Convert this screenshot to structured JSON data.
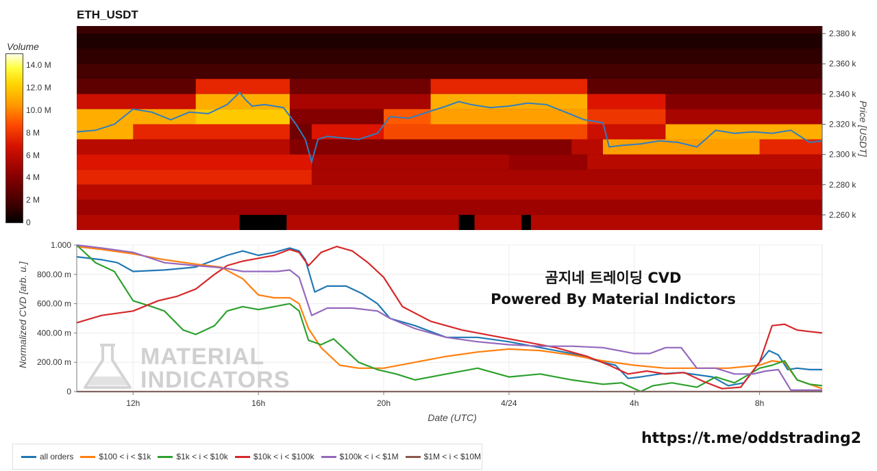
{
  "title": "ETH_USDT",
  "colorbar": {
    "title": "Volume",
    "ticks": [
      "0",
      "2 M",
      "4 M",
      "6 M",
      "8 M",
      "10.0 M",
      "12.0 M",
      "14.0 M"
    ],
    "tick_values": [
      0,
      2,
      4,
      6,
      8,
      10,
      12,
      14
    ]
  },
  "heatmap": {
    "price_ticks": [
      "2.260 k",
      "2.280 k",
      "2.300 k",
      "2.320 k",
      "2.340 k",
      "2.360 k",
      "2.380 k"
    ],
    "price_tick_values": [
      2260,
      2280,
      2300,
      2320,
      2340,
      2360,
      2380
    ],
    "ylim": [
      2250,
      2385
    ],
    "ylabel": "Price [USDT]"
  },
  "cvd": {
    "ylabel": "Normalized CVD [arb. u.]",
    "xlabel": "Date (UTC)",
    "y_ticks": [
      "0",
      "200.00 m",
      "400.00 m",
      "600.00 m",
      "800.00 m",
      "1.000"
    ],
    "y_tick_values": [
      0,
      0.2,
      0.4,
      0.6,
      0.8,
      1.0
    ],
    "x_ticks": [
      "12h",
      "16h",
      "20h",
      "4/24",
      "4h",
      "8h"
    ],
    "x_tick_hours": [
      12,
      16,
      20,
      24,
      28,
      32
    ]
  },
  "overlay_text": {
    "line1": "곰지네 트레이딩 CVD",
    "line2": "Powered By Material Indictors"
  },
  "watermark": {
    "line1": "MATERIAL",
    "line2": "INDICATORS"
  },
  "url": "https://t.me/oddstrading2",
  "legend": [
    {
      "label": "all orders",
      "color": "#1f77b4"
    },
    {
      "label": "$100 < i < $1k",
      "color": "#ff7f0e"
    },
    {
      "label": "$1k < i < $10k",
      "color": "#2ca02c"
    },
    {
      "label": "$10k < i < $100k",
      "color": "#d62728"
    },
    {
      "label": "$100k < i < $1M",
      "color": "#9467bd"
    },
    {
      "label": "$1M < i < $10M",
      "color": "#8c564b"
    }
  ],
  "chart_data": [
    {
      "type": "heatmap",
      "title": "ETH_USDT",
      "x_hours_range": [
        10.2,
        34.0
      ],
      "price_bins": [
        2255,
        2265,
        2275,
        2285,
        2295,
        2305,
        2315,
        2325,
        2335,
        2345,
        2355,
        2365,
        2375,
        2383
      ],
      "price_line": {
        "x_hours": [
          10.2,
          10.8,
          11.4,
          12.0,
          12.6,
          13.2,
          13.8,
          14.4,
          15.0,
          15.4,
          15.6,
          15.8,
          16.2,
          16.8,
          17.2,
          17.5,
          17.7,
          17.9,
          18.2,
          18.6,
          19.2,
          19.8,
          20.2,
          20.8,
          21.4,
          22.0,
          22.4,
          22.8,
          23.4,
          24.0,
          24.6,
          25.2,
          25.8,
          26.4,
          27.0,
          27.2,
          27.6,
          28.2,
          28.8,
          29.4,
          30.0,
          30.6,
          31.2,
          31.8,
          32.4,
          33.0,
          33.6,
          34.0
        ],
        "price": [
          2315,
          2316,
          2320,
          2330,
          2328,
          2323,
          2328,
          2327,
          2333,
          2341,
          2336,
          2332,
          2333,
          2331,
          2320,
          2310,
          2295,
          2310,
          2312,
          2311,
          2310,
          2314,
          2325,
          2324,
          2328,
          2332,
          2335,
          2333,
          2331,
          2332,
          2334,
          2333,
          2328,
          2323,
          2321,
          2305,
          2306,
          2307,
          2309,
          2308,
          2305,
          2316,
          2314,
          2315,
          2314,
          2316,
          2308,
          2309
        ]
      },
      "volume_by_bin_M": [
        {
          "price": 2375,
          "segments": [
            [
              10.2,
              34.0,
              0.8
            ]
          ]
        },
        {
          "price": 2365,
          "segments": [
            [
              10.2,
              34.0,
              1.2
            ]
          ]
        },
        {
          "price": 2355,
          "segments": [
            [
              10.2,
              34.0,
              1.8
            ]
          ]
        },
        {
          "price": 2345,
          "segments": [
            [
              10.2,
              14.0,
              2.5
            ],
            [
              14.0,
              17.0,
              6.5
            ],
            [
              17.0,
              21.5,
              3.0
            ],
            [
              21.5,
              26.5,
              6.5
            ],
            [
              26.5,
              34.0,
              2.5
            ]
          ]
        },
        {
          "price": 2335,
          "segments": [
            [
              10.2,
              14.0,
              5.5
            ],
            [
              14.0,
              17.0,
              10.5
            ],
            [
              17.0,
              21.5,
              4.5
            ],
            [
              21.5,
              26.5,
              10.5
            ],
            [
              26.5,
              29.0,
              6.0
            ],
            [
              29.0,
              34.0,
              3.5
            ]
          ]
        },
        {
          "price": 2325,
          "segments": [
            [
              10.2,
              14.0,
              10.5
            ],
            [
              14.0,
              17.0,
              11.5
            ],
            [
              17.0,
              20.0,
              3.5
            ],
            [
              20.0,
              21.5,
              8.0
            ],
            [
              21.5,
              26.5,
              10.0
            ],
            [
              26.5,
              29.0,
              7.0
            ],
            [
              29.0,
              34.0,
              4.5
            ]
          ]
        },
        {
          "price": 2315,
          "segments": [
            [
              10.2,
              12.0,
              10.5
            ],
            [
              12.0,
              17.0,
              6.5
            ],
            [
              17.0,
              17.7,
              3.0
            ],
            [
              17.7,
              20.0,
              6.0
            ],
            [
              20.0,
              26.5,
              7.5
            ],
            [
              26.5,
              29.0,
              5.5
            ],
            [
              29.0,
              34.0,
              10.5
            ]
          ]
        },
        {
          "price": 2305,
          "segments": [
            [
              10.2,
              17.0,
              5.0
            ],
            [
              17.0,
              26.0,
              3.5
            ],
            [
              26.0,
              27.0,
              5.0
            ],
            [
              27.0,
              32.0,
              10.0
            ],
            [
              32.0,
              34.0,
              6.5
            ]
          ]
        },
        {
          "price": 2295,
          "segments": [
            [
              10.2,
              17.7,
              6.0
            ],
            [
              17.7,
              24.0,
              4.5
            ],
            [
              24.0,
              26.5,
              4.0
            ],
            [
              26.5,
              34.0,
              5.0
            ]
          ]
        },
        {
          "price": 2285,
          "segments": [
            [
              10.2,
              17.7,
              6.5
            ],
            [
              17.7,
              34.0,
              4.5
            ]
          ]
        },
        {
          "price": 2275,
          "segments": [
            [
              10.2,
              34.0,
              5.0
            ]
          ]
        },
        {
          "price": 2265,
          "segments": [
            [
              10.2,
              34.0,
              4.2
            ]
          ]
        },
        {
          "price": 2255,
          "segments": [
            [
              10.2,
              15.4,
              4.8
            ],
            [
              15.4,
              16.9,
              0.0
            ],
            [
              16.9,
              22.4,
              4.8
            ],
            [
              22.4,
              22.9,
              0.0
            ],
            [
              22.9,
              24.4,
              4.8
            ],
            [
              24.4,
              24.7,
              0.0
            ],
            [
              24.7,
              34.0,
              4.8
            ]
          ]
        }
      ]
    },
    {
      "type": "line",
      "xlabel": "Date (UTC)",
      "ylabel": "Normalized CVD [arb. u.]",
      "ylim": [
        0,
        1.0
      ],
      "x_hours_range": [
        10.2,
        34.0
      ],
      "series": [
        {
          "name": "all orders",
          "color": "#1f77b4",
          "x": [
            10.2,
            11.0,
            11.5,
            12.0,
            13.0,
            14.0,
            15.0,
            15.5,
            16.0,
            16.5,
            17.0,
            17.3,
            17.5,
            17.8,
            18.2,
            18.8,
            19.3,
            19.8,
            20.2,
            21.0,
            22.0,
            23.0,
            24.0,
            25.0,
            26.0,
            27.0,
            27.4,
            27.8,
            28.2,
            28.8,
            29.5,
            30.5,
            31.0,
            31.5,
            32.0,
            32.3,
            32.6,
            32.9,
            33.2,
            33.6,
            34.0
          ],
          "y": [
            0.92,
            0.9,
            0.88,
            0.82,
            0.83,
            0.85,
            0.93,
            0.96,
            0.93,
            0.95,
            0.98,
            0.96,
            0.9,
            0.68,
            0.72,
            0.72,
            0.67,
            0.6,
            0.5,
            0.45,
            0.37,
            0.37,
            0.34,
            0.3,
            0.26,
            0.2,
            0.18,
            0.09,
            0.1,
            0.12,
            0.13,
            0.1,
            0.04,
            0.06,
            0.2,
            0.28,
            0.25,
            0.15,
            0.16,
            0.15,
            0.15
          ]
        },
        {
          "name": "$100 < i < $1k",
          "color": "#ff7f0e",
          "x": [
            10.2,
            11.0,
            12.0,
            13.0,
            14.0,
            14.8,
            15.5,
            16.0,
            16.5,
            17.0,
            17.3,
            17.6,
            18.0,
            18.6,
            19.2,
            20.0,
            21.0,
            22.0,
            23.0,
            24.0,
            25.0,
            26.0,
            27.0,
            28.0,
            29.0,
            30.0,
            31.0,
            32.0,
            32.4,
            32.8,
            33.2,
            33.6,
            34.0
          ],
          "y": [
            0.99,
            0.97,
            0.94,
            0.9,
            0.87,
            0.85,
            0.77,
            0.66,
            0.64,
            0.64,
            0.6,
            0.43,
            0.3,
            0.18,
            0.16,
            0.16,
            0.2,
            0.24,
            0.27,
            0.29,
            0.28,
            0.25,
            0.21,
            0.18,
            0.16,
            0.16,
            0.16,
            0.18,
            0.21,
            0.2,
            0.08,
            0.05,
            0.02
          ]
        },
        {
          "name": "$1k < i < $10k",
          "color": "#2ca02c",
          "x": [
            10.2,
            10.8,
            11.4,
            12.0,
            12.6,
            13.0,
            13.6,
            14.0,
            14.6,
            15.0,
            15.5,
            16.0,
            16.5,
            17.0,
            17.3,
            17.6,
            18.0,
            18.4,
            18.8,
            19.2,
            19.8,
            20.4,
            21.0,
            22.0,
            23.0,
            24.0,
            25.0,
            26.0,
            27.0,
            27.6,
            28.2,
            28.6,
            29.2,
            30.0,
            30.6,
            31.2,
            32.0,
            32.4,
            32.8,
            33.2,
            33.6,
            34.0
          ],
          "y": [
            1.0,
            0.88,
            0.82,
            0.62,
            0.58,
            0.55,
            0.42,
            0.39,
            0.45,
            0.55,
            0.58,
            0.56,
            0.58,
            0.6,
            0.55,
            0.35,
            0.32,
            0.36,
            0.28,
            0.2,
            0.15,
            0.12,
            0.08,
            0.12,
            0.16,
            0.1,
            0.12,
            0.08,
            0.05,
            0.06,
            0.0,
            0.04,
            0.06,
            0.03,
            0.1,
            0.06,
            0.16,
            0.18,
            0.21,
            0.08,
            0.05,
            0.04
          ]
        },
        {
          "name": "$10k < i < $100k",
          "color": "#d62728",
          "x": [
            10.2,
            11.0,
            12.0,
            12.8,
            13.4,
            14.0,
            14.6,
            15.0,
            15.5,
            16.0,
            16.5,
            17.0,
            17.3,
            17.6,
            18.0,
            18.5,
            19.0,
            19.5,
            20.0,
            20.6,
            21.5,
            22.5,
            23.5,
            24.5,
            25.5,
            26.5,
            27.2,
            27.8,
            28.4,
            29.0,
            29.6,
            30.2,
            30.8,
            31.4,
            32.0,
            32.4,
            32.8,
            33.2,
            33.6,
            34.0
          ],
          "y": [
            0.47,
            0.52,
            0.55,
            0.62,
            0.65,
            0.7,
            0.8,
            0.86,
            0.89,
            0.91,
            0.93,
            0.97,
            0.95,
            0.86,
            0.95,
            0.99,
            0.96,
            0.88,
            0.78,
            0.58,
            0.48,
            0.42,
            0.38,
            0.34,
            0.3,
            0.24,
            0.18,
            0.12,
            0.14,
            0.12,
            0.13,
            0.07,
            0.02,
            0.03,
            0.2,
            0.45,
            0.46,
            0.42,
            0.41,
            0.4
          ]
        },
        {
          "name": "$100k < i < $1M",
          "color": "#9467bd",
          "x": [
            10.2,
            11.0,
            12.0,
            13.0,
            14.0,
            14.6,
            15.0,
            15.5,
            16.0,
            16.6,
            17.0,
            17.3,
            17.7,
            18.2,
            19.0,
            19.8,
            20.2,
            21.0,
            22.0,
            23.0,
            24.0,
            25.0,
            26.0,
            27.0,
            27.5,
            28.0,
            28.5,
            29.0,
            29.5,
            30.0,
            30.6,
            31.2,
            31.8,
            32.2,
            32.6,
            33.0,
            33.4,
            34.0
          ],
          "y": [
            1.0,
            0.98,
            0.95,
            0.88,
            0.86,
            0.85,
            0.84,
            0.82,
            0.82,
            0.82,
            0.83,
            0.78,
            0.52,
            0.57,
            0.57,
            0.55,
            0.5,
            0.43,
            0.37,
            0.34,
            0.32,
            0.31,
            0.31,
            0.3,
            0.28,
            0.26,
            0.26,
            0.3,
            0.3,
            0.16,
            0.16,
            0.12,
            0.12,
            0.14,
            0.15,
            0.01,
            0.01,
            0.01
          ]
        },
        {
          "name": "$1M < i < $10M",
          "color": "#8c564b",
          "x": [
            10.2,
            34.0
          ],
          "y": [
            0.0,
            0.0
          ]
        }
      ]
    }
  ]
}
